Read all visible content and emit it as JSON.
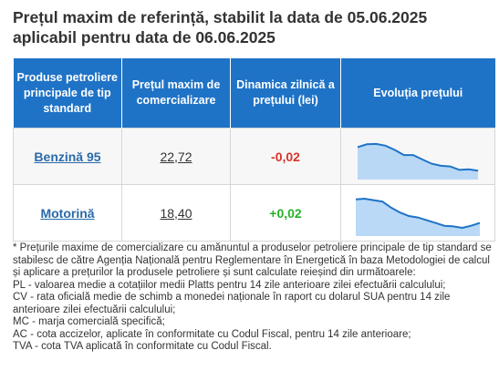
{
  "title": {
    "line1": "Prețul maxim de referință, stabilit la data de 05.06.2025",
    "line2": "aplicabil pentru data de 06.06.2025"
  },
  "table": {
    "headers": [
      "Produse petroliere principale de tip standard",
      "Prețul maxim de comercializare",
      "Dinamica zilnică a prețului (lei)",
      "Evoluția prețului"
    ],
    "rows": [
      {
        "product": "Benzină 95",
        "price": "22,72",
        "change": "-0,02",
        "change_color": "#d9332a",
        "trend": [
          0.78,
          0.86,
          0.87,
          0.82,
          0.7,
          0.55,
          0.55,
          0.42,
          0.3,
          0.24,
          0.22,
          0.12,
          0.14,
          0.1
        ]
      },
      {
        "product": "Motorină",
        "price": "18,40",
        "change": "+0,02",
        "change_color": "#27b327",
        "trend": [
          0.9,
          0.92,
          0.88,
          0.84,
          0.66,
          0.52,
          0.42,
          0.38,
          0.3,
          0.22,
          0.14,
          0.12,
          0.08,
          0.14,
          0.22
        ]
      }
    ],
    "header_color": "#1f73c6",
    "sparkline_fill": "#a8d0f5",
    "sparkline_stroke": "#1f73c6"
  },
  "notes": [
    "* Prețurile maxime de comercializare cu amănuntul a produselor petroliere principale de tip standard se stabilesc de către Agenția Națională pentru Reglementare în Energetică în baza Metodologiei de calcul și aplicare a prețurilor la produsele petroliere și sunt calculate reieșind din următoarele:",
    "PL - valoarea medie a cotațiilor medii Platts pentru 14 zile anterioare zilei efectuării calculului;",
    "CV - rata oficială medie de schimb a monedei naționale în raport cu dolarul SUA pentru 14 zile anterioare zilei efectuării calculului;",
    "MC - marja comercială specifică;",
    "AC - cota accizelor, aplicate în conformitate cu Codul Fiscal, pentru 14 zile anterioare;",
    "TVA - cota TVA aplicată în conformitate cu Codul Fiscal."
  ]
}
